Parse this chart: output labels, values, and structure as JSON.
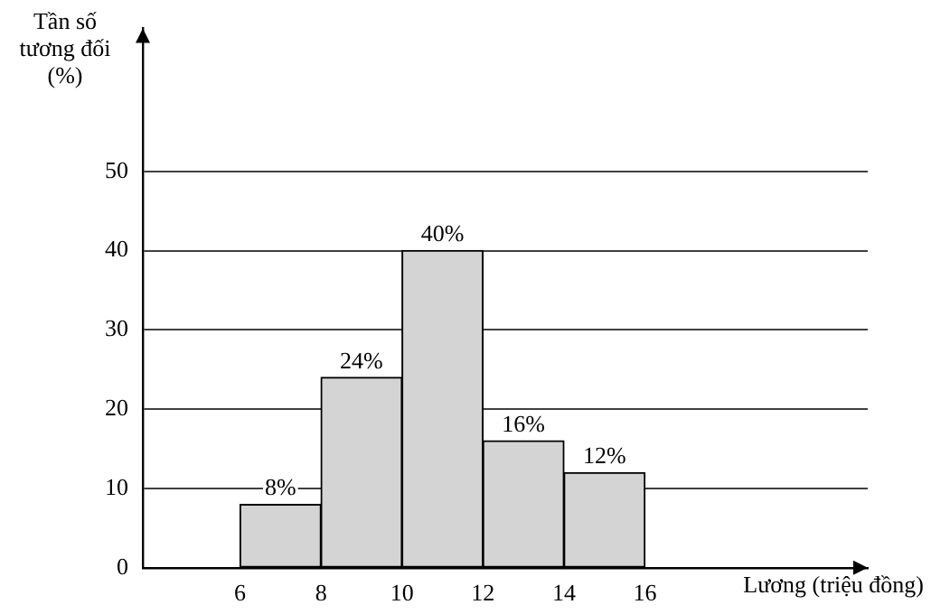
{
  "chart_data": {
    "type": "histogram",
    "xlabel": "Lương (triệu đồng)",
    "ylabel": "Tần số\ntương đối\n(%)",
    "bins": [
      6,
      8,
      10,
      12,
      14,
      16
    ],
    "values": [
      8,
      24,
      40,
      16,
      12
    ],
    "value_labels": [
      "8%",
      "24%",
      "40%",
      "16%",
      "12%"
    ],
    "color": "#d4d4d4",
    "xlim": [
      3.6,
      21.5
    ],
    "xticks": [
      6,
      8,
      10,
      12,
      14,
      16
    ],
    "ylim": [
      0,
      68
    ],
    "yticks": [
      0,
      10,
      20,
      30,
      40,
      50
    ],
    "grid": "y",
    "legend": false
  }
}
